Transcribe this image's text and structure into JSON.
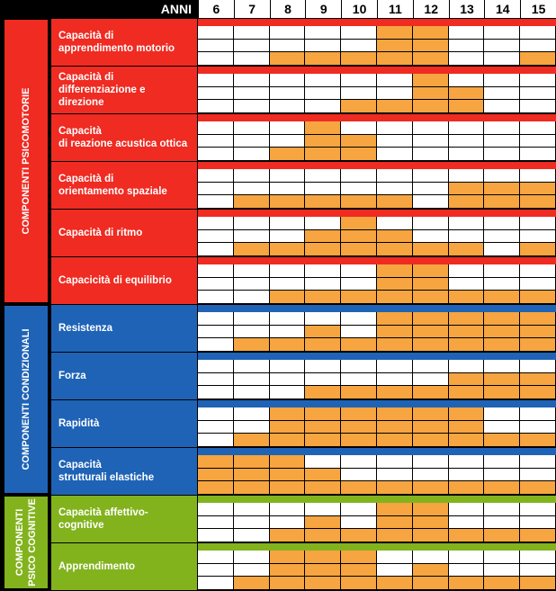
{
  "chart_data": {
    "type": "table",
    "header_label": "ANNI",
    "years": [
      "6",
      "7",
      "8",
      "9",
      "10",
      "11",
      "12",
      "13",
      "14",
      "15"
    ],
    "colors": {
      "psicomotorie": "#ef2b22",
      "condizionali": "#1f63b6",
      "cognitive": "#82b31d",
      "orange": "#f6a540",
      "white": "#ffffff"
    },
    "groups": [
      {
        "name": "COMPONENTI PSICOMOTORIE",
        "lines": [
          "COMPONENTI PSICOMOTORIE"
        ],
        "color_key": "psicomotorie",
        "rows": [
          {
            "label": [
              "Capacità di",
              "apprendimento motorio"
            ],
            "levels": [
              0,
              0,
              1,
              1,
              1,
              3,
              3,
              0,
              0,
              1
            ]
          },
          {
            "label": [
              "Capacità di",
              "differenziazione e direzione"
            ],
            "levels": [
              0,
              0,
              0,
              0,
              1,
              1,
              3,
              2,
              0,
              0
            ]
          },
          {
            "label": [
              "Capacità",
              "di reazione acustica ottica"
            ],
            "levels": [
              0,
              0,
              1,
              3,
              2,
              0,
              0,
              0,
              0,
              0
            ]
          },
          {
            "label": [
              "Capacità di",
              "orientamento spaziale"
            ],
            "levels": [
              0,
              1,
              1,
              1,
              1,
              1,
              0,
              2,
              2,
              2
            ]
          },
          {
            "label": [
              "Capacità di ritmo"
            ],
            "levels": [
              0,
              1,
              1,
              2,
              3,
              2,
              1,
              1,
              0,
              1
            ]
          },
          {
            "label": [
              "Capacicità di equilibrio"
            ],
            "levels": [
              0,
              0,
              1,
              1,
              1,
              3,
              3,
              1,
              1,
              1
            ]
          }
        ]
      },
      {
        "name": "COMPONENTI CONDIZIONALI",
        "lines": [
          "COMPONENTI CONDIZIONALI"
        ],
        "color_key": "condizionali",
        "rows": [
          {
            "label": [
              "Resistenza"
            ],
            "levels": [
              0,
              1,
              1,
              2,
              1,
              3,
              3,
              3,
              3,
              3
            ]
          },
          {
            "label": [
              "Forza"
            ],
            "levels": [
              0,
              0,
              0,
              1,
              1,
              1,
              1,
              2,
              2,
              2
            ]
          },
          {
            "label": [
              "Rapidità"
            ],
            "levels": [
              0,
              1,
              3,
              3,
              3,
              3,
              3,
              3,
              1,
              1
            ]
          },
          {
            "label": [
              "Capacità",
              "strutturali elastiche"
            ],
            "levels": [
              3,
              3,
              3,
              2,
              1,
              1,
              1,
              1,
              1,
              1
            ]
          }
        ]
      },
      {
        "name": "COMPONENTI PSICO COGNITIVE",
        "lines": [
          "COMPONENTI",
          "PSICO COGNITIVE"
        ],
        "color_key": "cognitive",
        "rows": [
          {
            "label": [
              "Capacità affettivo-cognitive"
            ],
            "levels": [
              0,
              0,
              1,
              2,
              1,
              3,
              3,
              1,
              1,
              1
            ]
          },
          {
            "label": [
              "Apprendimento"
            ],
            "levels": [
              0,
              1,
              3,
              3,
              3,
              1,
              2,
              1,
              1,
              1
            ]
          }
        ]
      }
    ]
  }
}
